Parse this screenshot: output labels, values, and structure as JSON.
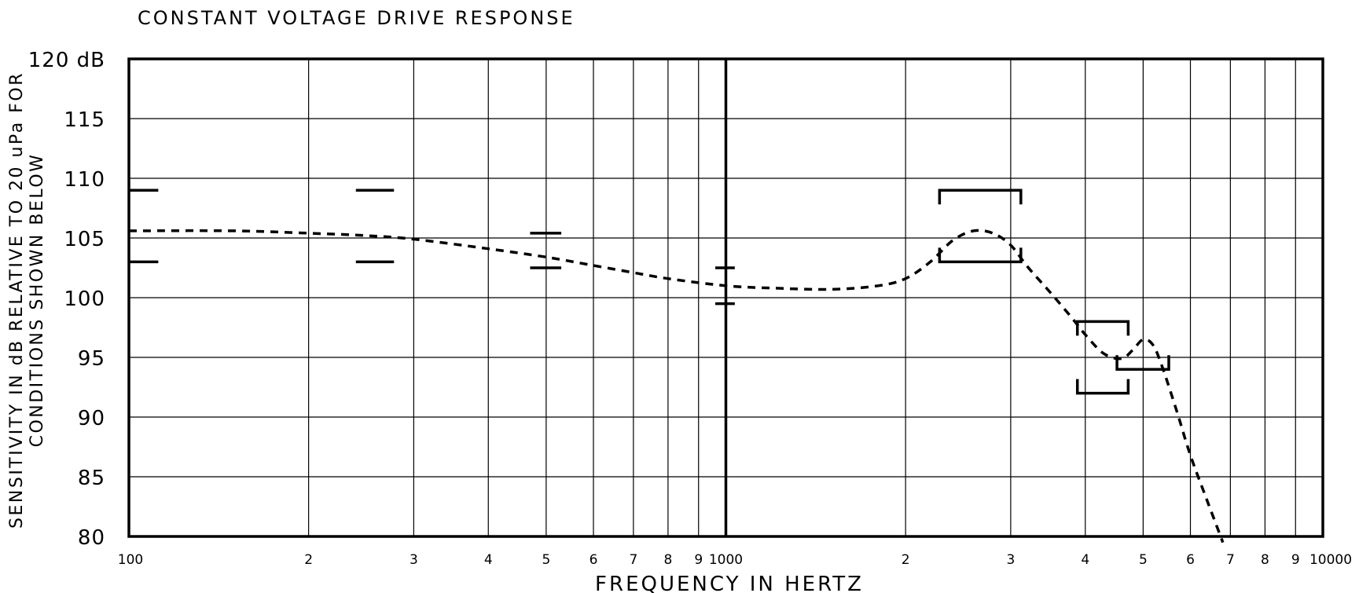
{
  "chart_data": {
    "type": "line",
    "title": "CONSTANT VOLTAGE DRIVE RESPONSE",
    "xlabel": "FREQUENCY IN HERTZ",
    "ylabel_lines": [
      "SENSITIVITY IN dB RELATIVE TO 20 uPa FOR",
      "CONDITIONS SHOWN BELOW"
    ],
    "x_scale": "log",
    "xlim": [
      100,
      10000
    ],
    "ylim": [
      80,
      120
    ],
    "grid": true,
    "y_ticks": [
      {
        "value": 120,
        "label": "120 dB"
      },
      {
        "value": 115,
        "label": "115"
      },
      {
        "value": 110,
        "label": "110"
      },
      {
        "value": 105,
        "label": "105"
      },
      {
        "value": 100,
        "label": "100"
      },
      {
        "value": 95,
        "label": "95"
      },
      {
        "value": 90,
        "label": "90"
      },
      {
        "value": 85,
        "label": "85"
      },
      {
        "value": 80,
        "label": "80"
      }
    ],
    "x_ticks": [
      {
        "value": 100,
        "label": "100"
      },
      {
        "value": 200,
        "label": "2"
      },
      {
        "value": 300,
        "label": "3"
      },
      {
        "value": 400,
        "label": "4"
      },
      {
        "value": 500,
        "label": "5"
      },
      {
        "value": 600,
        "label": "6"
      },
      {
        "value": 700,
        "label": "7"
      },
      {
        "value": 800,
        "label": "8"
      },
      {
        "value": 900,
        "label": "9"
      },
      {
        "value": 1000,
        "label": "1000"
      },
      {
        "value": 2000,
        "label": "2"
      },
      {
        "value": 3000,
        "label": "3"
      },
      {
        "value": 4000,
        "label": "4"
      },
      {
        "value": 5000,
        "label": "5"
      },
      {
        "value": 6000,
        "label": "6"
      },
      {
        "value": 7000,
        "label": "7"
      },
      {
        "value": 8000,
        "label": "8"
      },
      {
        "value": 9000,
        "label": "9"
      },
      {
        "value": 10000,
        "label": "10000"
      }
    ],
    "series": [
      {
        "style": "dashed",
        "x": [
          100,
          150,
          200,
          250,
          300,
          400,
          500,
          600,
          700,
          800,
          1000,
          1200,
          1500,
          1800,
          2000,
          2200,
          2400,
          2600,
          2800,
          3000,
          3200,
          3500,
          3800,
          4000,
          4300,
          4600,
          4800,
          5000,
          5200,
          5400,
          5700,
          6000,
          6400,
          6800
        ],
        "y": [
          105.6,
          105.6,
          105.4,
          105.2,
          104.9,
          104.1,
          103.4,
          102.7,
          102.1,
          101.6,
          101.0,
          100.8,
          100.7,
          101.0,
          101.6,
          103.0,
          104.8,
          105.6,
          105.4,
          104.4,
          102.6,
          100.4,
          98.3,
          96.9,
          95.3,
          94.9,
          95.6,
          96.5,
          96.0,
          94.0,
          90.4,
          86.8,
          83.0,
          79.5
        ]
      }
    ],
    "tolerance_marks": [
      {
        "x": [
          100,
          112
        ],
        "upper": 109,
        "lower": 103
      },
      {
        "x": [
          240,
          278
        ],
        "upper": 109,
        "lower": 103
      },
      {
        "x": [
          470,
          530
        ],
        "upper": 105.4,
        "lower": 102.5
      },
      {
        "x": [
          960,
          1035
        ],
        "upper": 102.5,
        "lower": 99.5
      }
    ],
    "tolerance_brackets": [
      {
        "x": [
          2280,
          3120
        ],
        "upper": 109,
        "lower": 103
      },
      {
        "x": [
          3880,
          4720
        ],
        "upper": 98.0,
        "lower": 92.0
      },
      {
        "x": [
          4520,
          5520
        ],
        "lower": 94.0
      }
    ]
  }
}
